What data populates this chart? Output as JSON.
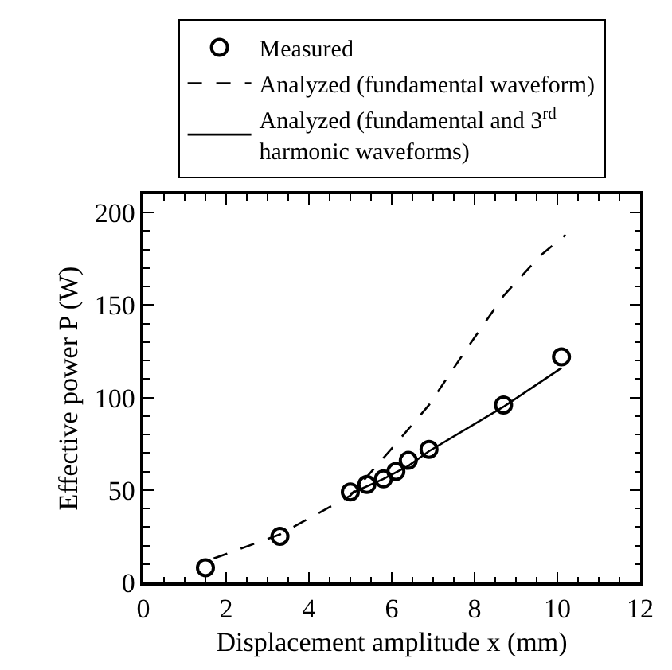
{
  "chart_data": {
    "type": "line",
    "xlabel": "Displacement amplitude x (mm)",
    "ylabel": "Effective power P (W)",
    "xlim": [
      0,
      12
    ],
    "xticks": [
      0,
      2,
      4,
      6,
      8,
      10,
      12
    ],
    "ylim": [
      0,
      210
    ],
    "yticks": [
      0,
      50,
      100,
      150,
      200
    ],
    "grid": false,
    "legend": "top",
    "series": [
      {
        "name": "Measured",
        "type": "scatter",
        "marker": "circle",
        "color": "#000000",
        "x": [
          1.5,
          3.3,
          5.0,
          5.4,
          5.8,
          6.1,
          6.4,
          6.9,
          8.7,
          10.1
        ],
        "values": [
          8,
          25,
          49,
          53,
          56,
          60,
          66,
          72,
          96,
          122
        ]
      },
      {
        "name": "Analyzed (fundamental waveform)",
        "line_style": "dashed",
        "color": "#000000",
        "x": [
          1.7,
          3.3,
          5.0,
          6.1,
          6.9,
          7.8,
          8.7,
          9.6,
          10.2
        ],
        "values": [
          13,
          26,
          47,
          75,
          96,
          126,
          155,
          177,
          188
        ]
      },
      {
        "name": "Analyzed (fundamental and 3$^{rd}$ harmonic waveforms)",
        "line_style": "solid",
        "color": "#000000",
        "x": [
          5.0,
          5.8,
          6.4,
          6.9,
          8.7,
          10.1
        ],
        "values": [
          48,
          56,
          63,
          71,
          95,
          116
        ]
      }
    ]
  }
}
